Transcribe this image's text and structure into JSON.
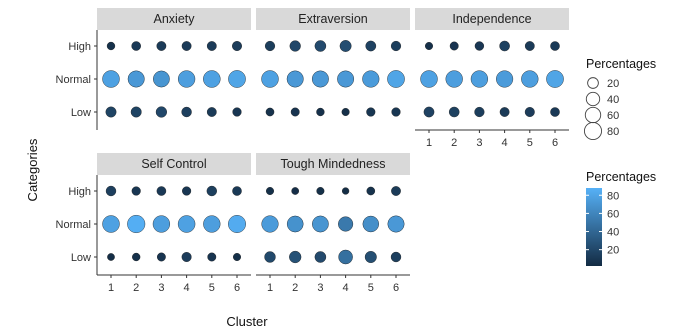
{
  "chart_data": {
    "type": "scatter",
    "xlabel": "Cluster",
    "ylabel": "Categories",
    "x_categories": [
      "1",
      "2",
      "3",
      "4",
      "5",
      "6"
    ],
    "y_categories": [
      "High",
      "Normal",
      "Low"
    ],
    "facets": [
      {
        "name": "Anxiety",
        "points": {
          "High": [
            6,
            11,
            12,
            12,
            12,
            13
          ],
          "Normal": [
            78,
            72,
            70,
            76,
            78,
            80
          ],
          "Low": [
            18,
            18,
            20,
            15,
            12,
            9
          ]
        }
      },
      {
        "name": "Extraversion",
        "points": {
          "High": [
            14,
            20,
            22,
            24,
            17,
            14
          ],
          "Normal": [
            78,
            72,
            72,
            72,
            74,
            80
          ],
          "Low": [
            7,
            8,
            6,
            5,
            9,
            9
          ]
        }
      },
      {
        "name": "Independence",
        "points": {
          "High": [
            5,
            8,
            10,
            16,
            12,
            11
          ],
          "Normal": [
            78,
            76,
            76,
            74,
            76,
            80
          ],
          "Low": [
            17,
            16,
            14,
            12,
            13,
            11
          ]
        }
      },
      {
        "name": "Self Control",
        "points": {
          "High": [
            15,
            9,
            11,
            9,
            15,
            11
          ],
          "Normal": [
            78,
            86,
            76,
            78,
            76,
            84
          ],
          "Low": [
            4,
            6,
            8,
            13,
            8,
            5
          ]
        }
      },
      {
        "name": "Tough Mindedness",
        "points": {
          "High": [
            5,
            4,
            5,
            3,
            7,
            12
          ],
          "Normal": [
            74,
            68,
            70,
            52,
            66,
            72
          ],
          "Low": [
            21,
            27,
            22,
            46,
            25,
            15
          ]
        }
      }
    ],
    "size_legend": {
      "title": "Percentages",
      "values": [
        20,
        40,
        60,
        80
      ]
    },
    "color_legend": {
      "title": "Percentages",
      "values": [
        80,
        60,
        40,
        20
      ],
      "low_color": "#132b43",
      "high_color": "#56b1f7"
    },
    "panel_strip_color": "#d9d9d9",
    "grid": false
  }
}
